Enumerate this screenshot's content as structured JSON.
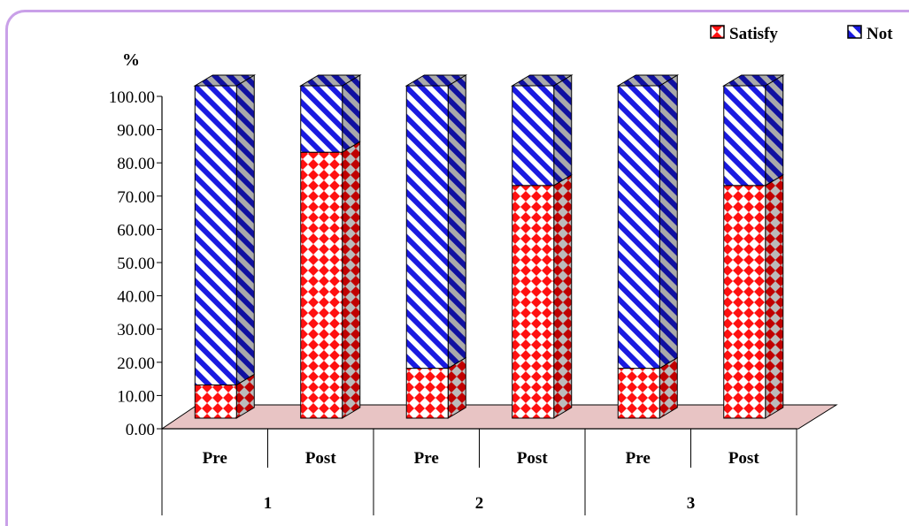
{
  "colors": {
    "frame": "#c9a0e8",
    "floor": "#e8c4c4",
    "satisfy_fill": "#ff1010",
    "not_fill": "#1a1ae0",
    "side_shade": "#888888"
  },
  "chart_data": {
    "type": "bar",
    "stacked": true,
    "three_d": true,
    "ylabel": "%",
    "ylim": [
      0,
      100
    ],
    "yticks": [
      "0.00",
      "10.00",
      "20.00",
      "30.00",
      "40.00",
      "50.00",
      "60.00",
      "70.00",
      "80.00",
      "90.00",
      "100.00"
    ],
    "categories": [
      "Pre",
      "Post",
      "Pre",
      "Post",
      "Pre",
      "Post"
    ],
    "groups": [
      "1",
      "2",
      "3"
    ],
    "legend_position": "top-right",
    "series": [
      {
        "name": "Satisfy",
        "values": [
          10,
          80,
          15,
          70,
          15,
          70
        ]
      },
      {
        "name": "Not",
        "values": [
          90,
          20,
          85,
          30,
          85,
          30
        ]
      }
    ]
  }
}
